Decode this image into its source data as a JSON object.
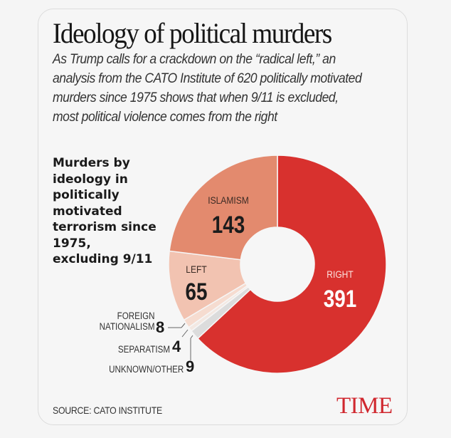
{
  "header": {
    "title": "Ideology of political murders",
    "subtitle": "As Trump calls for a crackdown on the “radical left,” an analysis from the CATO Institute of 620 politically motivated murders since 1975 shows that when 9/11 is excluded, most political violence comes from the right"
  },
  "chart_label": "Murders by ideology in politically motivated terrorism since 1975, excluding 9/11",
  "labels": {
    "right_name": "RIGHT",
    "right_val": "391",
    "islamism_name": "ISLAMISM",
    "islamism_val": "143",
    "left_name": "LEFT",
    "left_val": "65",
    "foreign_name_1": "FOREIGN",
    "foreign_name_2": "NATIONALISM",
    "foreign_val": "8",
    "separatism_name": "SEPARATISM",
    "separatism_val": "4",
    "unknown_name": "UNKNOWN/OTHER",
    "unknown_val": "9"
  },
  "footer": {
    "source": "SOURCE: CATO INSTITUTE",
    "logo": "TIME"
  },
  "colors": {
    "right": "#d8312e",
    "islamism": "#e38a6e",
    "left": "#f2c3b1",
    "foreign_nationalism": "#f6dcd0",
    "separatism": "#f3e8e2",
    "unknown_other": "#dcdcdc",
    "brand": "#d0272e"
  },
  "chart_data": {
    "type": "pie",
    "variant": "donut",
    "title": "Ideology of political murders",
    "subtitle": "Murders by ideology in politically motivated terrorism since 1975, excluding 9/11",
    "categories": [
      "Right",
      "Unknown/Other",
      "Separatism",
      "Foreign Nationalism",
      "Left",
      "Islamism"
    ],
    "values": [
      391,
      9,
      4,
      8,
      65,
      143
    ],
    "total": 620,
    "source": "SOURCE: CATO INSTITUTE"
  }
}
